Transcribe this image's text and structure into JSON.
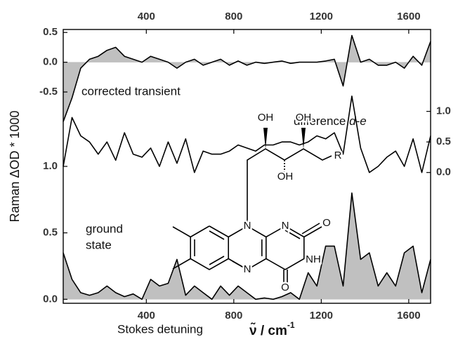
{
  "chart_data": [
    {
      "type": "area",
      "annotation": "corrected transient",
      "x": [
        20,
        60,
        100,
        140,
        180,
        220,
        260,
        300,
        340,
        380,
        420,
        460,
        500,
        540,
        580,
        620,
        660,
        700,
        740,
        780,
        820,
        860,
        900,
        940,
        980,
        1020,
        1060,
        1100,
        1140,
        1180,
        1220,
        1260,
        1300,
        1340,
        1380,
        1420,
        1460,
        1500,
        1540,
        1580,
        1620,
        1660,
        1700
      ],
      "values": [
        -1.0,
        -0.6,
        -0.1,
        0.05,
        0.1,
        0.2,
        0.25,
        0.1,
        0.05,
        0.0,
        0.1,
        0.05,
        0.0,
        -0.1,
        0.0,
        0.05,
        -0.05,
        0.0,
        0.05,
        -0.05,
        0.02,
        -0.05,
        0.0,
        -0.02,
        0.0,
        0.02,
        -0.02,
        0.0,
        0.0,
        0.0,
        0.02,
        0.05,
        -0.4,
        0.45,
        0.0,
        0.05,
        -0.05,
        -0.05,
        0.0,
        -0.1,
        0.1,
        -0.05,
        0.35
      ],
      "color": "#000000",
      "fill_color": "#c0c0c0",
      "xlim": [
        20,
        1700
      ],
      "xticks": [
        400,
        800,
        1200,
        1600
      ],
      "xaxis": "top",
      "ylim": [
        -4.05,
        0.55
      ],
      "yticks": [
        0.5,
        {
          "value": 0,
          "label": "0.0"
        },
        -0.5
      ]
    },
    {
      "type": "line",
      "annotation": "difference",
      "annotation_italic": "d-e",
      "x": [
        20,
        60,
        100,
        140,
        180,
        220,
        260,
        300,
        340,
        380,
        420,
        460,
        500,
        540,
        580,
        620,
        660,
        700,
        740,
        780,
        820,
        860,
        900,
        940,
        980,
        1020,
        1060,
        1100,
        1140,
        1180,
        1220,
        1260,
        1300,
        1340,
        1380,
        1420,
        1460,
        1500,
        1540,
        1580,
        1620,
        1660,
        1700
      ],
      "values": [
        0.1,
        0.9,
        0.6,
        0.5,
        0.3,
        0.5,
        0.2,
        0.65,
        0.3,
        0.25,
        0.4,
        0.1,
        0.5,
        0.15,
        0.55,
        0.0,
        0.35,
        0.3,
        0.3,
        0.35,
        0.45,
        0.4,
        0.35,
        0.45,
        0.45,
        0.5,
        0.5,
        0.45,
        0.5,
        0.6,
        0.55,
        0.65,
        0.3,
        1.25,
        0.4,
        0.0,
        0.1,
        0.25,
        0.35,
        0.1,
        0.55,
        0.0,
        0.6
      ],
      "color": "#000000",
      "axis": "y2",
      "xlim": [
        20,
        1700
      ],
      "y2lim": [
        -2.14,
        2.34
      ],
      "y2ticks": [
        {
          "value": 0,
          "label": "0.0"
        },
        0.5,
        {
          "value": 1,
          "label": "1.0"
        }
      ]
    },
    {
      "type": "area",
      "annotation": [
        "ground",
        "state"
      ],
      "x": [
        20,
        60,
        100,
        140,
        180,
        220,
        260,
        300,
        340,
        380,
        420,
        460,
        500,
        540,
        580,
        620,
        660,
        700,
        740,
        780,
        820,
        860,
        900,
        940,
        980,
        1020,
        1060,
        1100,
        1140,
        1180,
        1220,
        1260,
        1300,
        1340,
        1380,
        1420,
        1460,
        1500,
        1540,
        1580,
        1620,
        1660,
        1700
      ],
      "values": [
        0.35,
        0.15,
        0.05,
        0.03,
        0.05,
        0.1,
        0.05,
        0.02,
        0.04,
        0.0,
        0.15,
        0.1,
        0.12,
        0.3,
        0.03,
        0.1,
        0.05,
        0.0,
        0.1,
        0.03,
        0.1,
        0.05,
        0.0,
        0.01,
        0.0,
        0.02,
        0.05,
        0.0,
        0.2,
        0.1,
        0.4,
        0.4,
        0.1,
        0.8,
        0.3,
        0.35,
        0.1,
        0.2,
        0.1,
        0.35,
        0.4,
        0.05,
        0.3
      ],
      "color": "#000000",
      "fill_color": "#c0c0c0",
      "xlim": [
        20,
        1700
      ],
      "xticks": [
        400,
        800,
        1200,
        1600
      ],
      "xaxis": "bottom",
      "xlabel": "Stokes detuning",
      "x_unit": "ν̃ / cm",
      "x_unit_exp": "-1",
      "ylabel": "Raman ΔOD * 1000",
      "ylim": [
        -0.03,
        2.03
      ],
      "yticks": [
        {
          "value": 0,
          "label": "0.0"
        },
        0.5,
        {
          "value": 1,
          "label": "1.0"
        }
      ]
    }
  ],
  "structure": {
    "atoms": [
      "OH",
      "OH",
      "OH",
      "R",
      "N",
      "N",
      "N",
      "O",
      "NH",
      "O"
    ]
  }
}
